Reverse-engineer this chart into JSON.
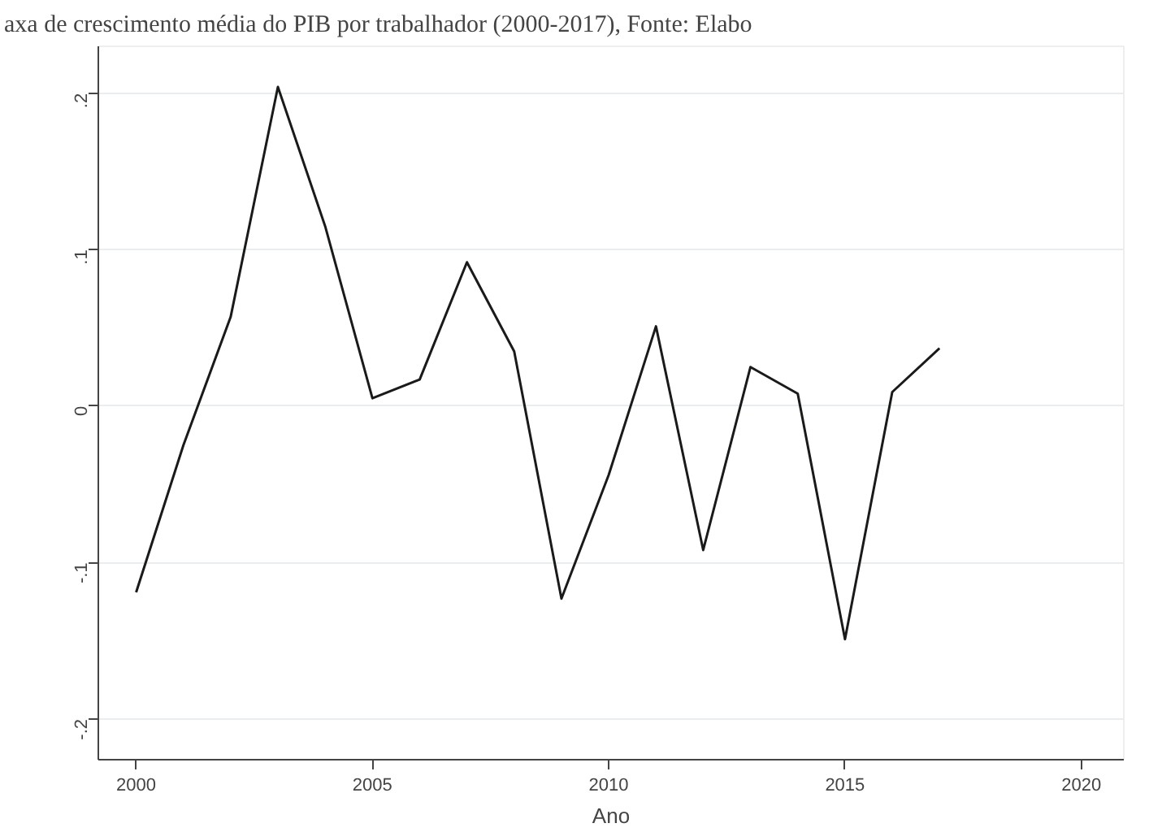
{
  "chart_data": {
    "type": "line",
    "title": "axa de crescimento média do PIB por trabalhador (2000-2017), Fonte: Elabo",
    "xlabel": "Ano",
    "x": [
      2000,
      2001,
      2002,
      2003,
      2004,
      2005,
      2006,
      2007,
      2008,
      2009,
      2010,
      2011,
      2012,
      2013,
      2014,
      2015,
      2016,
      2017
    ],
    "series": [
      {
        "color": "#1a1a1a",
        "values": [
          -0.119,
          -0.025,
          0.057,
          0.204,
          0.115,
          0.005,
          0.017,
          0.092,
          0.035,
          -0.123,
          -0.044,
          0.051,
          -0.092,
          0.025,
          0.008,
          -0.149,
          0.009,
          0.037
        ]
      }
    ],
    "xlim": [
      1999.2,
      2020.9
    ],
    "xticks": [
      2000,
      2005,
      2010,
      2015,
      2020
    ],
    "ylim": [
      -0.226,
      0.23
    ],
    "yticks": [
      {
        "value": -0.2,
        "label": "-.2"
      },
      {
        "value": -0.1,
        "label": "-.1"
      },
      0,
      {
        "value": 0.1,
        "label": ".1"
      },
      {
        "value": 0.2,
        "label": ".2"
      }
    ],
    "grid": "y",
    "marker": "none",
    "line_style": "solid"
  }
}
